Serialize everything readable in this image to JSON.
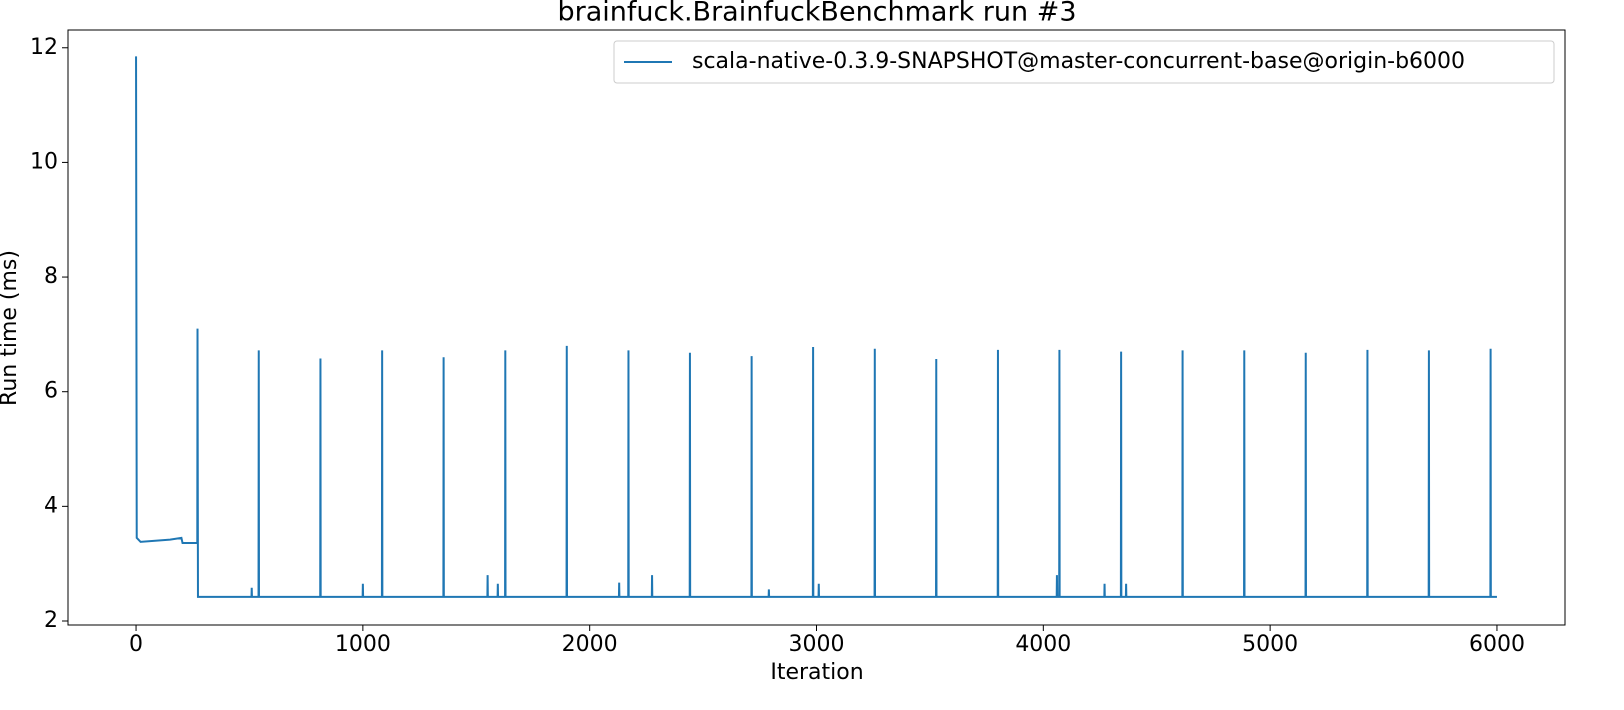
{
  "chart_data": {
    "type": "line",
    "title": "brainfuck.BrainfuckBenchmark run #3",
    "x_label": "Iteration",
    "y_label": "Run time (ms)",
    "xlim": [
      -300,
      6300
    ],
    "ylim": [
      1.93,
      12.31
    ],
    "xticks": [
      0,
      1000,
      2000,
      3000,
      4000,
      5000,
      6000
    ],
    "yticks": [
      2,
      4,
      6,
      8,
      10,
      12
    ],
    "legend": "upper right",
    "x": [
      0,
      3,
      20,
      150,
      200,
      205,
      270,
      271,
      273,
      509,
      510,
      511,
      540,
      541,
      542,
      812,
      813,
      814,
      999,
      1000,
      1001,
      1084,
      1085,
      1086,
      1355,
      1356,
      1357,
      1549,
      1550,
      1551,
      1594,
      1595,
      1596,
      1627,
      1628,
      1629,
      1898,
      1899,
      1900,
      2129,
      2130,
      2131,
      2170,
      2171,
      2172,
      2274,
      2275,
      2276,
      2441,
      2442,
      2443,
      2713,
      2714,
      2715,
      2789,
      2790,
      2791,
      2984,
      2985,
      2986,
      3009,
      3010,
      3011,
      3256,
      3257,
      3258,
      3527,
      3528,
      3529,
      3799,
      3800,
      3801,
      4059,
      4060,
      4061,
      4070,
      4071,
      4072,
      4269,
      4270,
      4271,
      4342,
      4343,
      4344,
      4364,
      4365,
      4366,
      4613,
      4614,
      4615,
      4885,
      4886,
      4887,
      5156,
      5157,
      5158,
      5428,
      5429,
      5430,
      5699,
      5700,
      5701,
      5971,
      5972,
      5973,
      6000
    ],
    "series": [
      {
        "name": "scala-native-0.3.9-SNAPSHOT@master-concurrent-base@origin-b6000",
        "color": "#1f77b4",
        "values": [
          11.85,
          3.45,
          3.38,
          3.42,
          3.45,
          3.36,
          3.36,
          7.1,
          2.42,
          2.42,
          2.58,
          2.42,
          2.42,
          6.72,
          2.42,
          2.42,
          6.58,
          2.42,
          2.42,
          2.65,
          2.42,
          2.42,
          6.72,
          2.42,
          2.42,
          6.6,
          2.42,
          2.42,
          2.8,
          2.42,
          2.42,
          2.65,
          2.42,
          2.42,
          6.72,
          2.42,
          2.42,
          6.8,
          2.42,
          2.42,
          2.67,
          2.42,
          2.42,
          6.72,
          2.42,
          2.42,
          2.8,
          2.42,
          2.42,
          6.68,
          2.42,
          2.42,
          6.62,
          2.42,
          2.42,
          2.55,
          2.42,
          2.42,
          6.78,
          2.42,
          2.42,
          2.65,
          2.42,
          2.42,
          6.75,
          2.42,
          2.42,
          6.57,
          2.42,
          2.42,
          6.73,
          2.42,
          2.42,
          2.8,
          2.42,
          2.42,
          6.73,
          2.42,
          2.42,
          2.65,
          2.42,
          2.42,
          6.7,
          2.42,
          2.42,
          2.65,
          2.42,
          2.42,
          6.72,
          2.42,
          2.42,
          6.72,
          2.42,
          2.42,
          6.68,
          2.42,
          2.42,
          6.73,
          2.42,
          2.42,
          6.72,
          2.42,
          2.42,
          6.75,
          2.42,
          2.42
        ]
      }
    ]
  }
}
